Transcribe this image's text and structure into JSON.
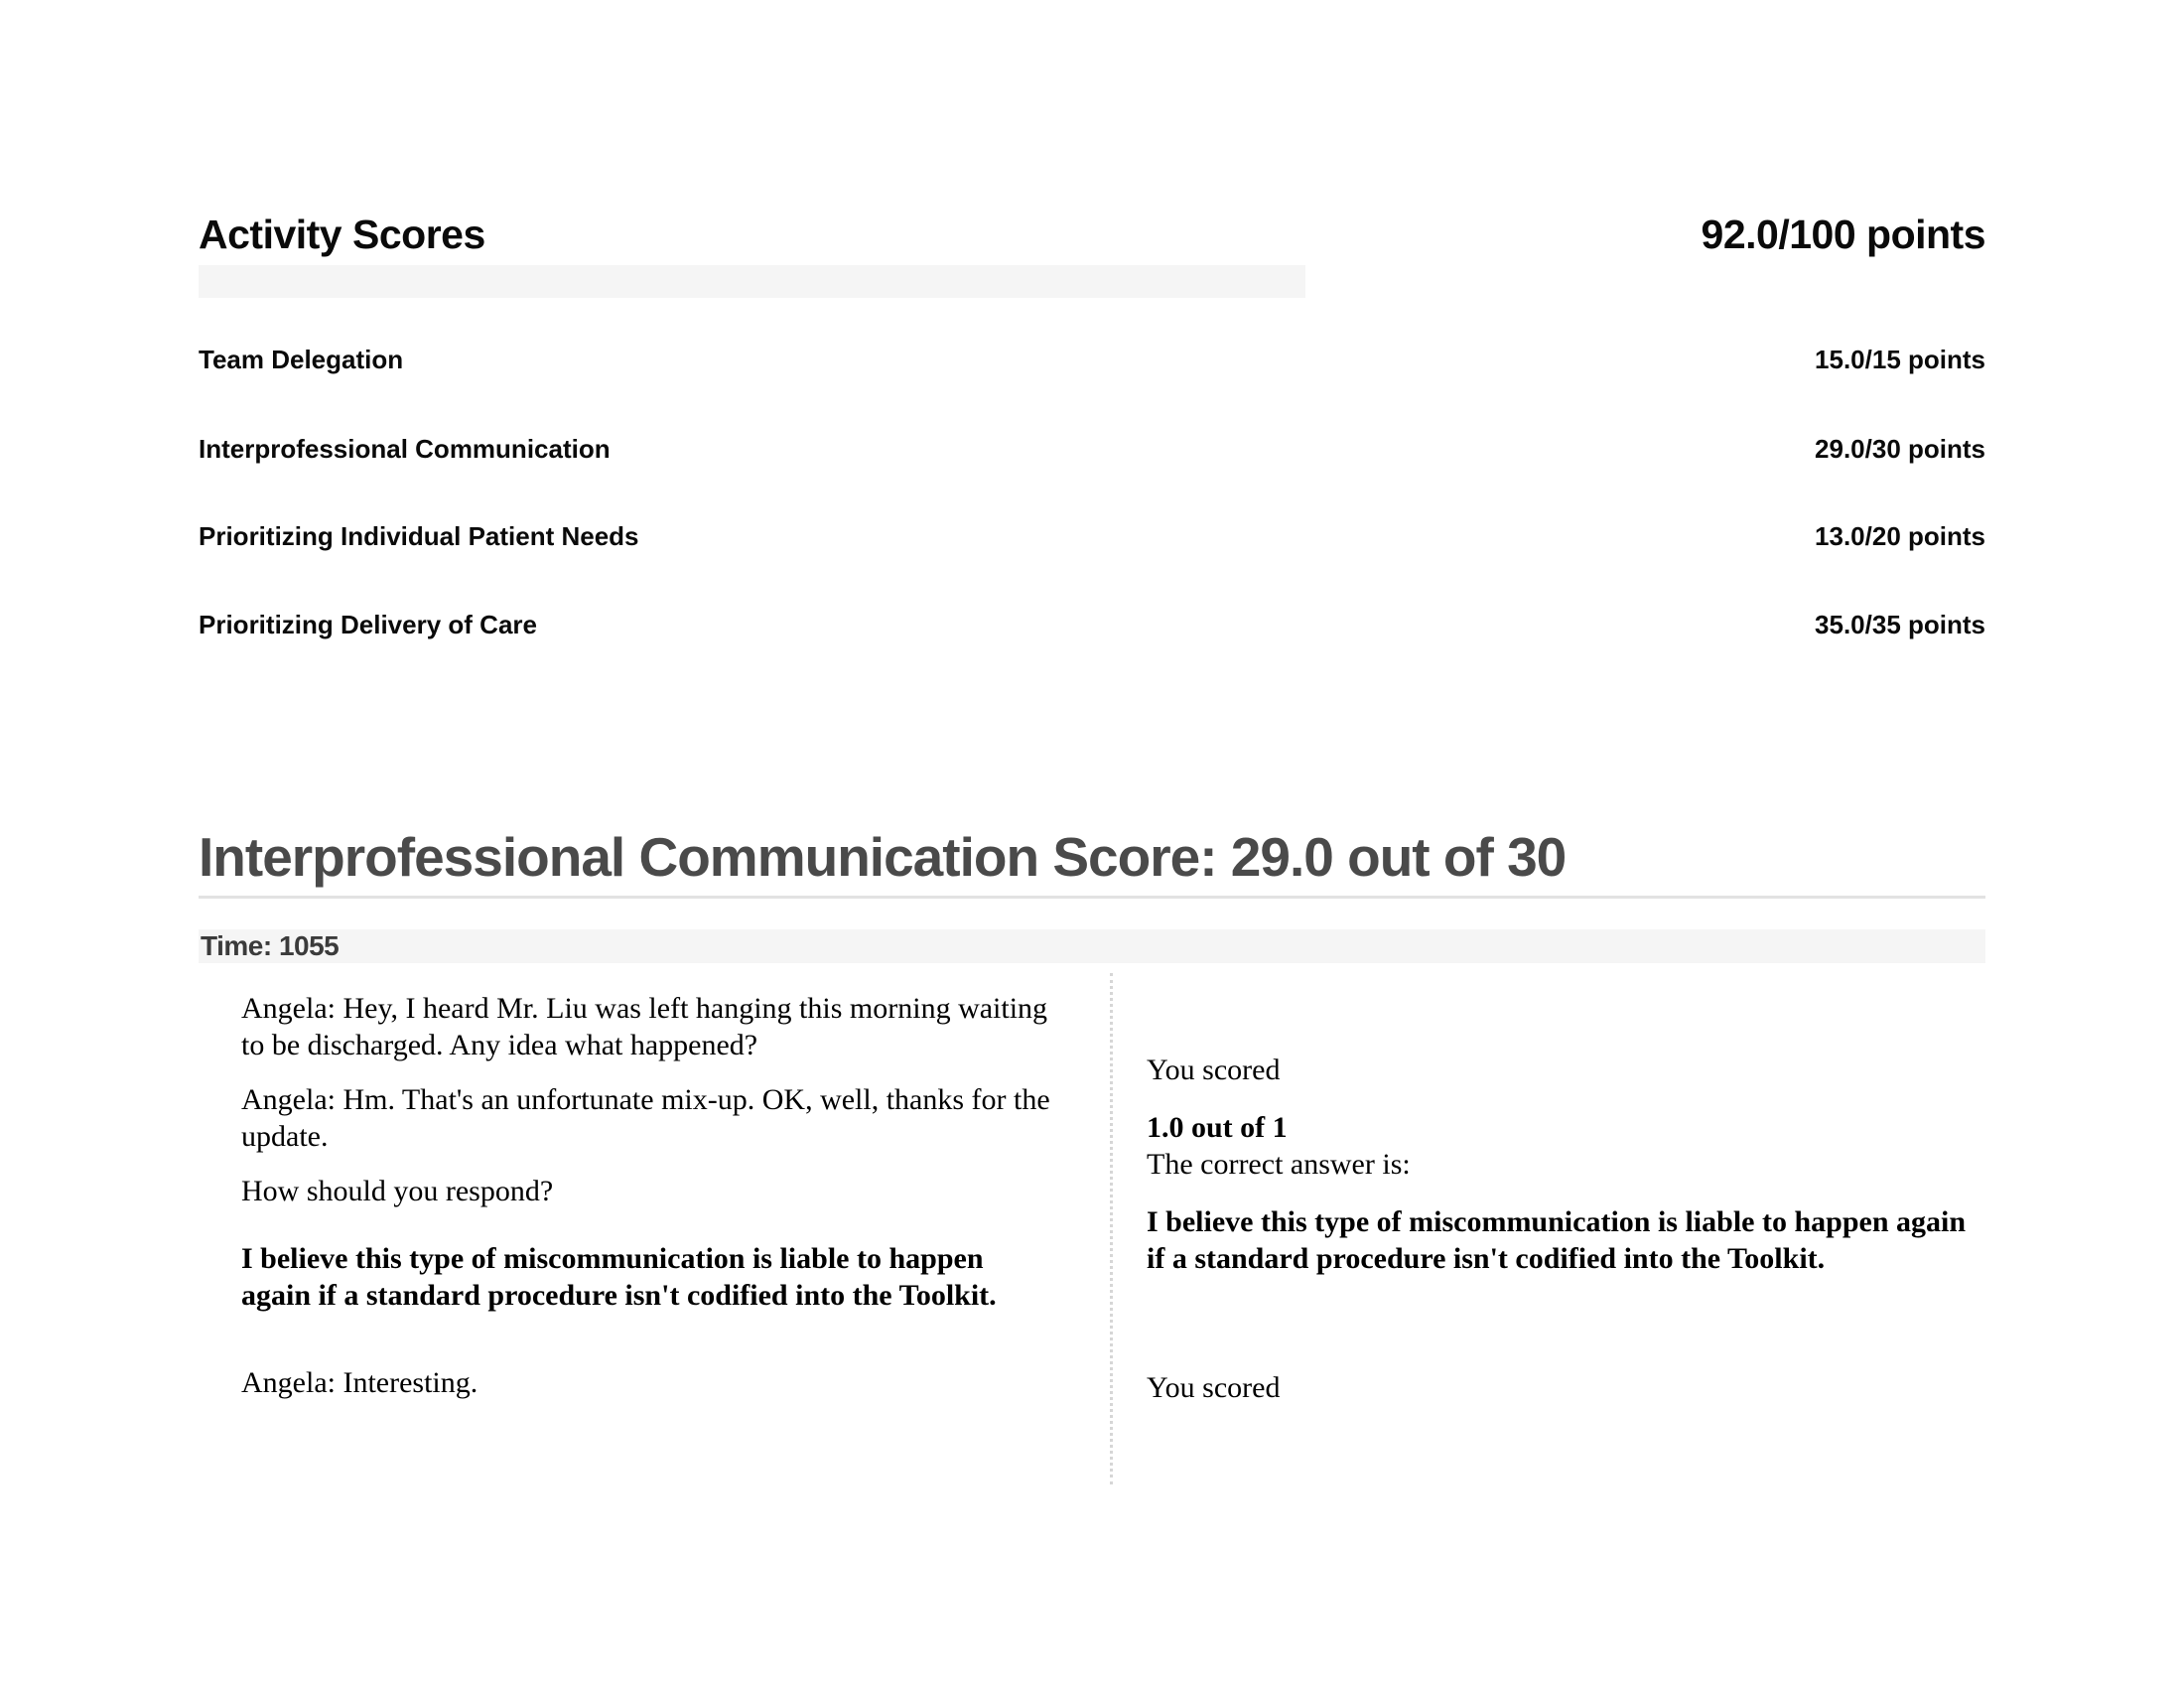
{
  "colors": {
    "background": "#ffffff",
    "text": "#0a0a0a",
    "section_heading": "#4a4a4a",
    "light_bar": "#f5f5f5",
    "rule": "#e2e2e2",
    "divider_dots": "#d6d6d6",
    "time_text": "#3b3b3b"
  },
  "activity_scores": {
    "title": "Activity Scores",
    "total": "92.0/100 points",
    "rows": [
      {
        "label": "Team Delegation",
        "points": "15.0/15 points"
      },
      {
        "label": "Interprofessional Communication",
        "points": "29.0/30 points"
      },
      {
        "label": "Prioritizing Individual Patient Needs",
        "points": "13.0/20 points"
      },
      {
        "label": "Prioritizing Delivery of Care",
        "points": "35.0/35 points"
      }
    ]
  },
  "section": {
    "heading": "Interprofessional Communication Score: 29.0 out of 30",
    "time_label": "Time: 1055",
    "left_column": {
      "paragraphs": [
        {
          "text": "Angela: Hey, I heard Mr. Liu was left hanging this morning waiting to be discharged. Any idea what happened?"
        },
        {
          "text": "Angela: Hm. That's an unfortunate mix-up. OK, well, thanks for the update."
        },
        {
          "text": "How should you respond?"
        },
        {
          "text": "I believe this type of miscommunication is liable to happen again if a standard procedure isn't codified into the Toolkit."
        },
        {
          "text": "Angela: Interesting."
        }
      ]
    },
    "right_column": {
      "you_scored_label": "You scored",
      "score": "1.0 out of 1",
      "correct_answer_label": "The correct answer is:",
      "correct_answer": "I believe this type of miscommunication is liable to happen again if a standard procedure isn't codified into the Toolkit.",
      "you_scored_label_2": "You scored"
    }
  }
}
